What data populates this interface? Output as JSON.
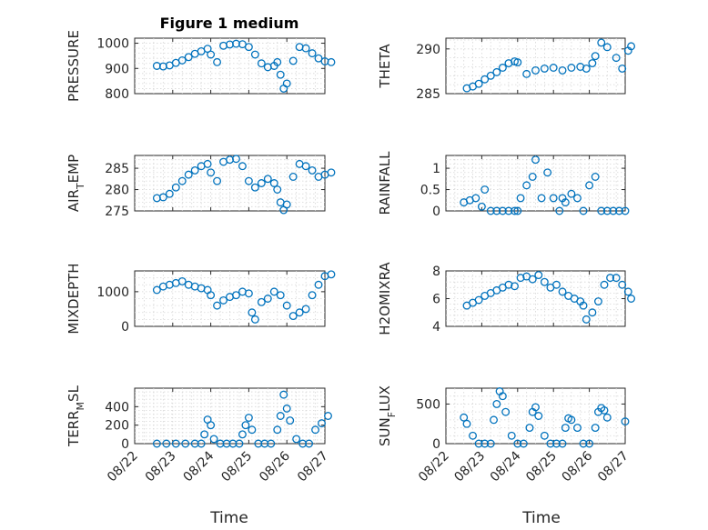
{
  "figure": {
    "title": "Figure 1 medium",
    "xlabel": "Time"
  },
  "colors": {
    "marker": "#0072BD",
    "axis": "#262626",
    "grid": "#d6d6d6"
  },
  "chart_data": [
    {
      "type": "scatter",
      "id": "pressure",
      "title": "Figure 1 medium",
      "ylabel": "PRESSURE",
      "ylabel_sub": "",
      "ylabel_post": "",
      "xlim": [
        "08/22",
        "08/27"
      ],
      "ylim": [
        800,
        1020
      ],
      "yticks": [
        800,
        900,
        1000
      ],
      "grid": true,
      "x": [
        "08/22 14:00",
        "08/22 18:00",
        "08/22 22:00",
        "08/23 02:00",
        "08/23 06:00",
        "08/23 10:00",
        "08/23 14:00",
        "08/23 18:00",
        "08/23 22:00",
        "08/24 00:00",
        "08/24 04:00",
        "08/24 08:00",
        "08/24 12:00",
        "08/24 16:00",
        "08/24 20:00",
        "08/25 00:00",
        "08/25 04:00",
        "08/25 08:00",
        "08/25 12:00",
        "08/25 16:00",
        "08/25 18:00",
        "08/25 20:00",
        "08/25 22:00",
        "08/26 00:00",
        "08/26 04:00",
        "08/26 08:00",
        "08/26 12:00",
        "08/26 16:00",
        "08/26 20:00",
        "08/27 00:00",
        "08/27 04:00"
      ],
      "y": [
        910,
        908,
        912,
        922,
        932,
        945,
        958,
        968,
        978,
        955,
        925,
        990,
        995,
        998,
        996,
        985,
        955,
        920,
        905,
        910,
        925,
        875,
        820,
        840,
        930,
        985,
        980,
        960,
        940,
        928,
        925
      ]
    },
    {
      "type": "scatter",
      "id": "theta",
      "ylabel": "THETA",
      "ylabel_sub": "",
      "ylabel_post": "",
      "xlim": [
        "08/22",
        "08/27"
      ],
      "ylim": [
        285,
        291.2
      ],
      "yticks": [
        285,
        290
      ],
      "grid": true,
      "x": [
        "08/22 14:00",
        "08/22 18:00",
        "08/22 22:00",
        "08/23 02:00",
        "08/23 06:00",
        "08/23 10:00",
        "08/23 14:00",
        "08/23 18:00",
        "08/23 22:00",
        "08/24 00:00",
        "08/24 06:00",
        "08/24 12:00",
        "08/24 18:00",
        "08/25 00:00",
        "08/25 06:00",
        "08/25 12:00",
        "08/25 18:00",
        "08/25 22:00",
        "08/26 02:00",
        "08/26 04:00",
        "08/26 08:00",
        "08/26 12:00",
        "08/26 18:00",
        "08/26 22:00",
        "08/27 02:00",
        "08/27 04:00"
      ],
      "y": [
        285.6,
        285.8,
        286.1,
        286.6,
        287.0,
        287.4,
        287.9,
        288.4,
        288.6,
        288.5,
        287.2,
        287.6,
        287.8,
        287.9,
        287.6,
        287.9,
        288.0,
        287.8,
        288.4,
        289.2,
        290.7,
        290.2,
        289.0,
        287.8,
        289.8,
        290.3
      ]
    },
    {
      "type": "scatter",
      "id": "air_temp",
      "ylabel": "AIR",
      "ylabel_sub": "T",
      "ylabel_post": "EMP",
      "xlim": [
        "08/22",
        "08/27"
      ],
      "ylim": [
        275,
        288
      ],
      "yticks": [
        275,
        280,
        285
      ],
      "grid": true,
      "x": [
        "08/22 14:00",
        "08/22 18:00",
        "08/22 22:00",
        "08/23 02:00",
        "08/23 06:00",
        "08/23 10:00",
        "08/23 14:00",
        "08/23 18:00",
        "08/23 22:00",
        "08/24 00:00",
        "08/24 04:00",
        "08/24 08:00",
        "08/24 12:00",
        "08/24 16:00",
        "08/24 20:00",
        "08/25 00:00",
        "08/25 04:00",
        "08/25 08:00",
        "08/25 12:00",
        "08/25 16:00",
        "08/25 18:00",
        "08/25 20:00",
        "08/25 22:00",
        "08/26 00:00",
        "08/26 04:00",
        "08/26 08:00",
        "08/26 12:00",
        "08/26 16:00",
        "08/26 20:00",
        "08/27 00:00",
        "08/27 04:00"
      ],
      "y": [
        278.0,
        278.2,
        279.0,
        280.5,
        282.0,
        283.5,
        284.5,
        285.5,
        286.0,
        284.0,
        282.0,
        286.5,
        287.0,
        287.2,
        285.5,
        282.0,
        280.5,
        281.5,
        282.5,
        281.5,
        280.0,
        277.0,
        275.2,
        276.5,
        283.0,
        286.0,
        285.5,
        284.5,
        283.0,
        283.5,
        284.0
      ]
    },
    {
      "type": "scatter",
      "id": "rainfall",
      "ylabel": "RAINFALL",
      "ylabel_sub": "",
      "ylabel_post": "",
      "xlim": [
        "08/22",
        "08/27"
      ],
      "ylim": [
        0,
        1.3
      ],
      "yticks": [
        0,
        0.5,
        1
      ],
      "grid": true,
      "ytick_labels": [
        "0",
        "0.5",
        "1"
      ],
      "x": [
        "08/22 12:00",
        "08/22 16:00",
        "08/22 20:00",
        "08/23 00:00",
        "08/23 02:00",
        "08/23 06:00",
        "08/23 10:00",
        "08/23 14:00",
        "08/23 18:00",
        "08/23 22:00",
        "08/24 00:00",
        "08/24 02:00",
        "08/24 06:00",
        "08/24 10:00",
        "08/24 12:00",
        "08/24 16:00",
        "08/24 20:00",
        "08/25 00:00",
        "08/25 04:00",
        "08/25 06:00",
        "08/25 08:00",
        "08/25 12:00",
        "08/25 16:00",
        "08/25 20:00",
        "08/26 00:00",
        "08/26 04:00",
        "08/26 08:00",
        "08/26 12:00",
        "08/26 16:00",
        "08/26 20:00",
        "08/27 00:00"
      ],
      "y": [
        0.2,
        0.25,
        0.3,
        0.1,
        0.5,
        0.0,
        0.0,
        0.0,
        0.0,
        0.0,
        0.0,
        0.3,
        0.6,
        0.8,
        1.2,
        0.3,
        0.9,
        0.3,
        0.0,
        0.3,
        0.2,
        0.4,
        0.3,
        0.0,
        0.6,
        0.8,
        0.0,
        0.0,
        0.0,
        0.0,
        0.0
      ]
    },
    {
      "type": "scatter",
      "id": "mixdepth",
      "ylabel": "MIXDEPTH",
      "ylabel_sub": "",
      "ylabel_post": "",
      "xlim": [
        "08/22",
        "08/27"
      ],
      "ylim": [
        0,
        1600
      ],
      "yticks": [
        0,
        1000
      ],
      "grid": true,
      "x": [
        "08/22 14:00",
        "08/22 18:00",
        "08/22 22:00",
        "08/23 02:00",
        "08/23 06:00",
        "08/23 10:00",
        "08/23 14:00",
        "08/23 18:00",
        "08/23 22:00",
        "08/24 00:00",
        "08/24 04:00",
        "08/24 08:00",
        "08/24 12:00",
        "08/24 16:00",
        "08/24 20:00",
        "08/25 00:00",
        "08/25 02:00",
        "08/25 04:00",
        "08/25 08:00",
        "08/25 12:00",
        "08/25 16:00",
        "08/25 20:00",
        "08/26 00:00",
        "08/26 04:00",
        "08/26 08:00",
        "08/26 12:00",
        "08/26 16:00",
        "08/26 20:00",
        "08/27 00:00",
        "08/27 04:00"
      ],
      "y": [
        1050,
        1150,
        1200,
        1250,
        1300,
        1200,
        1150,
        1100,
        1050,
        900,
        600,
        750,
        850,
        900,
        1000,
        950,
        400,
        200,
        700,
        800,
        1000,
        900,
        600,
        300,
        400,
        500,
        900,
        1200,
        1450,
        1500
      ]
    },
    {
      "type": "scatter",
      "id": "h2omixra",
      "ylabel": "H2OMIXRA",
      "ylabel_sub": "",
      "ylabel_post": "",
      "xlim": [
        "08/22",
        "08/27"
      ],
      "ylim": [
        4,
        8
      ],
      "yticks": [
        4,
        6,
        8
      ],
      "grid": true,
      "x": [
        "08/22 14:00",
        "08/22 18:00",
        "08/22 22:00",
        "08/23 02:00",
        "08/23 06:00",
        "08/23 10:00",
        "08/23 14:00",
        "08/23 18:00",
        "08/23 22:00",
        "08/24 02:00",
        "08/24 06:00",
        "08/24 10:00",
        "08/24 14:00",
        "08/24 18:00",
        "08/24 22:00",
        "08/25 02:00",
        "08/25 06:00",
        "08/25 10:00",
        "08/25 14:00",
        "08/25 18:00",
        "08/25 20:00",
        "08/25 22:00",
        "08/26 02:00",
        "08/26 06:00",
        "08/26 10:00",
        "08/26 14:00",
        "08/26 18:00",
        "08/26 22:00",
        "08/27 02:00",
        "08/27 04:00"
      ],
      "y": [
        5.5,
        5.7,
        5.9,
        6.2,
        6.4,
        6.6,
        6.8,
        7.0,
        6.9,
        7.5,
        7.6,
        7.4,
        7.7,
        7.2,
        6.8,
        7.0,
        6.5,
        6.2,
        6.0,
        5.8,
        5.5,
        4.5,
        5.0,
        5.8,
        7.0,
        7.5,
        7.5,
        7.0,
        6.5,
        6.0
      ]
    },
    {
      "type": "scatter",
      "id": "terr_msl",
      "ylabel": "TERR",
      "ylabel_sub": "M",
      "ylabel_post": "SL",
      "xlim": [
        "08/22",
        "08/27"
      ],
      "ylim": [
        0,
        600
      ],
      "yticks": [
        0,
        200,
        400
      ],
      "grid": true,
      "x": [
        "08/22 14:00",
        "08/22 20:00",
        "08/23 02:00",
        "08/23 08:00",
        "08/23 14:00",
        "08/23 18:00",
        "08/23 20:00",
        "08/23 22:00",
        "08/24 00:00",
        "08/24 02:00",
        "08/24 06:00",
        "08/24 10:00",
        "08/24 14:00",
        "08/24 18:00",
        "08/24 20:00",
        "08/24 22:00",
        "08/25 00:00",
        "08/25 02:00",
        "08/25 06:00",
        "08/25 10:00",
        "08/25 14:00",
        "08/25 18:00",
        "08/25 20:00",
        "08/25 22:00",
        "08/26 00:00",
        "08/26 02:00",
        "08/26 06:00",
        "08/26 10:00",
        "08/26 14:00",
        "08/26 18:00",
        "08/26 22:00",
        "08/27 02:00"
      ],
      "y": [
        0,
        0,
        0,
        0,
        0,
        0,
        100,
        260,
        200,
        50,
        0,
        0,
        0,
        0,
        100,
        200,
        280,
        150,
        0,
        0,
        0,
        150,
        300,
        530,
        380,
        250,
        50,
        0,
        0,
        150,
        220,
        300
      ]
    },
    {
      "type": "scatter",
      "id": "sun_flux",
      "ylabel": "SUN",
      "ylabel_sub": "F",
      "ylabel_post": "LUX",
      "xlim": [
        "08/22",
        "08/27"
      ],
      "ylim": [
        0,
        700
      ],
      "yticks": [
        0,
        500
      ],
      "grid": true,
      "x": [
        "08/22 12:00",
        "08/22 14:00",
        "08/22 18:00",
        "08/22 22:00",
        "08/23 02:00",
        "08/23 06:00",
        "08/23 08:00",
        "08/23 10:00",
        "08/23 12:00",
        "08/23 14:00",
        "08/23 16:00",
        "08/23 20:00",
        "08/24 00:00",
        "08/24 04:00",
        "08/24 08:00",
        "08/24 10:00",
        "08/24 12:00",
        "08/24 14:00",
        "08/24 18:00",
        "08/24 22:00",
        "08/25 02:00",
        "08/25 06:00",
        "08/25 08:00",
        "08/25 10:00",
        "08/25 12:00",
        "08/25 16:00",
        "08/25 20:00",
        "08/26 00:00",
        "08/26 04:00",
        "08/26 06:00",
        "08/26 08:00",
        "08/26 10:00",
        "08/26 12:00",
        "08/27 00:00"
      ],
      "y": [
        330,
        250,
        100,
        0,
        0,
        0,
        300,
        500,
        660,
        600,
        400,
        100,
        0,
        0,
        200,
        400,
        460,
        350,
        100,
        0,
        0,
        0,
        200,
        320,
        300,
        200,
        0,
        0,
        200,
        400,
        450,
        420,
        330,
        280
      ]
    }
  ]
}
